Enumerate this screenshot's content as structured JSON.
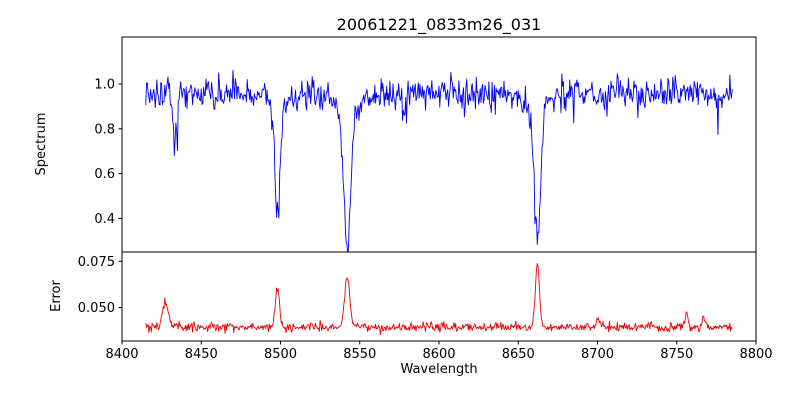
{
  "chart_data": {
    "type": "line",
    "title": "20061221_0833m26_031",
    "xlabel": "Wavelength",
    "xlim": [
      8400,
      8800
    ],
    "x_ticks": [
      8400,
      8450,
      8500,
      8550,
      8600,
      8650,
      8700,
      8750,
      8800
    ],
    "x_sampling": {
      "start": 8415,
      "end": 8785,
      "step": 0.5
    },
    "legend": "none",
    "grid": false,
    "subplots": [
      {
        "name": "spectrum",
        "ylabel": "Spectrum",
        "color": "#0000ee",
        "ylim": [
          0.25,
          1.21
        ],
        "y_ticks": [
          0.4,
          0.6,
          0.8,
          1.0
        ],
        "y_tick_labels": [
          "0.4",
          "0.6",
          "0.8",
          "1.0"
        ],
        "model": {
          "level": 0.955,
          "noise_sigma": 0.036,
          "spike_prob": 0.02,
          "spike_scale": 2.2,
          "seed": 20061221,
          "features": [
            {
              "center": 8433.5,
              "amp": -0.22,
              "sigma": 1.3
            },
            {
              "center": 8498.0,
              "amp": -0.5,
              "sigma": 1.7
            },
            {
              "center": 8498.0,
              "amp": -0.05,
              "sigma": 5.0
            },
            {
              "center": 8542.1,
              "amp": -0.6,
              "sigma": 2.2
            },
            {
              "center": 8542.1,
              "amp": -0.07,
              "sigma": 7.0
            },
            {
              "center": 8578.0,
              "amp": -0.12,
              "sigma": 0.9
            },
            {
              "center": 8662.1,
              "amp": -0.6,
              "sigma": 2.0
            },
            {
              "center": 8662.1,
              "amp": -0.07,
              "sigma": 6.0
            }
          ]
        }
      },
      {
        "name": "error",
        "ylabel": "Error",
        "color": "#ee0000",
        "ylim": [
          0.032,
          0.08
        ],
        "y_ticks": [
          0.05,
          0.075
        ],
        "y_tick_labels": [
          "0.050",
          "0.075"
        ],
        "model": {
          "level": 0.0395,
          "noise_sigma": 0.0012,
          "spike_prob": 0.015,
          "spike_scale": 2.0,
          "seed": 833,
          "features": [
            {
              "center": 8427.5,
              "amp": 0.013,
              "sigma": 1.8
            },
            {
              "center": 8498.0,
              "amp": 0.021,
              "sigma": 1.4
            },
            {
              "center": 8542.1,
              "amp": 0.028,
              "sigma": 1.6
            },
            {
              "center": 8662.1,
              "amp": 0.034,
              "sigma": 1.3
            },
            {
              "center": 8700.0,
              "amp": 0.004,
              "sigma": 1.2
            },
            {
              "center": 8756.0,
              "amp": 0.006,
              "sigma": 1.2
            },
            {
              "center": 8767.0,
              "amp": 0.005,
              "sigma": 1.0
            }
          ]
        }
      }
    ]
  }
}
